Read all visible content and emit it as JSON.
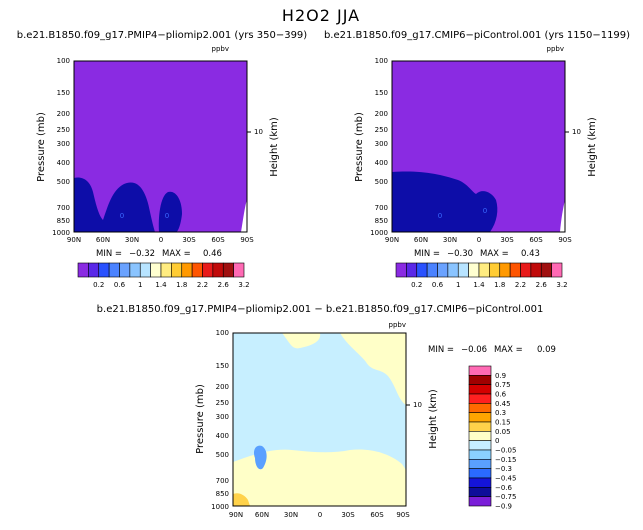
{
  "figure": {
    "title": "H2O2 JJA"
  },
  "colors": {
    "background_fill": "#8a2be2",
    "dark_blue": "#0d0da8",
    "mid_blue": "#2a2ad8",
    "diff_bg": "#c7efff",
    "diff_yellow": "#ffffc8",
    "diff_orange": "#ffd24a",
    "diff_blue": "#5aa0ff"
  },
  "chart_data": [
    {
      "id": "panel1",
      "type": "heatmap",
      "title": "b.e21.B1850.f09_g17.PMIP4−pliomip2.001 (yrs 350−399)",
      "units_label": "ppbv",
      "ylabel": "Pressure (mb)",
      "ylabel_right": "Height (km)",
      "x_ticks": [
        "90N",
        "60N",
        "30N",
        "0",
        "30S",
        "60S",
        "90S"
      ],
      "y_ticks": [
        "100",
        "150",
        "200",
        "250",
        "300",
        "400",
        "500",
        "700",
        "850",
        "1000"
      ],
      "right_ticks": [
        "10"
      ],
      "stats": {
        "min_label": "MIN =",
        "min": "−0.32",
        "max_label": "MAX =",
        "max": "0.46"
      },
      "colorbar_labels": [
        "0.2",
        "0.6",
        "1",
        "1.4",
        "1.8",
        "2.2",
        "2.6",
        "3.2"
      ],
      "contour_label": "0"
    },
    {
      "id": "panel2",
      "type": "heatmap",
      "title": "b.e21.B1850.f09_g17.CMIP6−piControl.001 (yrs 1150−1199)",
      "units_label": "ppbv",
      "ylabel": "Pressure (mb)",
      "ylabel_right": "Height (km)",
      "x_ticks": [
        "90N",
        "60N",
        "30N",
        "0",
        "30S",
        "60S",
        "90S"
      ],
      "y_ticks": [
        "100",
        "150",
        "200",
        "250",
        "300",
        "400",
        "500",
        "700",
        "850",
        "1000"
      ],
      "right_ticks": [
        "10"
      ],
      "stats": {
        "min_label": "MIN =",
        "min": "−0.30",
        "max_label": "MAX =",
        "max": "0.43"
      },
      "colorbar_labels": [
        "0.2",
        "0.6",
        "1",
        "1.4",
        "1.8",
        "2.2",
        "2.6",
        "3.2"
      ],
      "contour_label": "0"
    },
    {
      "id": "panel3",
      "type": "heatmap",
      "title": "b.e21.B1850.f09_g17.PMIP4−pliomip2.001 − b.e21.B1850.f09_g17.CMIP6−piControl.001",
      "units_label": "ppbv",
      "ylabel": "Pressure (mb)",
      "ylabel_right": "Height (km)",
      "x_ticks": [
        "90N",
        "60N",
        "30N",
        "0",
        "30S",
        "60S",
        "90S"
      ],
      "y_ticks": [
        "100",
        "150",
        "200",
        "250",
        "300",
        "400",
        "500",
        "700",
        "850",
        "1000"
      ],
      "right_ticks": [
        "10"
      ],
      "stats": {
        "min_label": "MIN =",
        "min": "−0.06",
        "max_label": "MAX =",
        "max": "0.09"
      },
      "colorbar_labels": [
        "0.9",
        "0.75",
        "0.6",
        "0.45",
        "0.3",
        "0.15",
        "0.05",
        "0",
        "−0.05",
        "−0.15",
        "−0.3",
        "−0.45",
        "−0.6",
        "−0.75",
        "−0.9"
      ]
    }
  ],
  "colorbars": {
    "horizontal": [
      "#8a2be2",
      "#5a28e8",
      "#2a52ff",
      "#4a82ff",
      "#6aa2ff",
      "#8ac4ff",
      "#b8e4ff",
      "#ffffd0",
      "#ffec80",
      "#ffcc33",
      "#ff9900",
      "#ff5500",
      "#e81a1a",
      "#c00a0a",
      "#a01010",
      "#ff6ab4"
    ],
    "vertical": [
      "#ff6ab4",
      "#a00000",
      "#d40000",
      "#ff2020",
      "#ff6a00",
      "#ffa500",
      "#ffd24a",
      "#ffffc8",
      "#c7efff",
      "#8ad0ff",
      "#5aa0ff",
      "#2a6aff",
      "#1414d8",
      "#0d0d9a",
      "#7a1ed8"
    ]
  }
}
